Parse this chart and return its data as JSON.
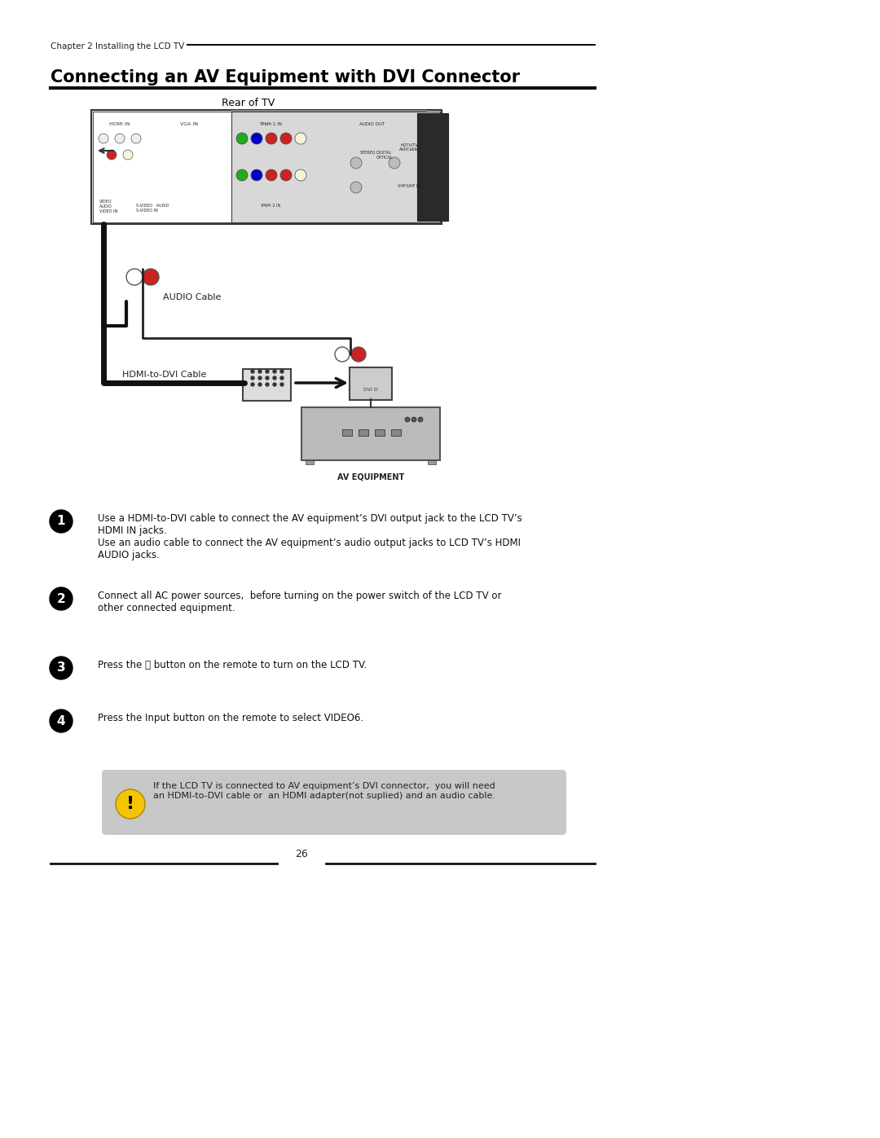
{
  "bg_color": "#ffffff",
  "page_width": 10.8,
  "page_height": 13.97,
  "chapter_text": "Chapter 2 Installing the LCD TV",
  "title": "Connecting an AV Equipment with DVI Connector",
  "rear_of_tv_label": "Rear of TV",
  "audio_cable_label": "AUDIO Cable",
  "hdmi_dvi_cable_label": "HDMI-to-DVI Cable",
  "av_equipment_label": "AV EQUIPMENT",
  "step1_text": "Use a HDMI-to-DVI cable to connect the AV equipment’s DVI output jack to the LCD TV’s\nHDMI IN jacks.\nUse an audio cable to connect the AV equipment’s audio output jacks to LCD TV’s HDMI\nAUDIO jacks.",
  "step2_text": "Connect all AC power sources,  before turning on the power switch of the LCD TV or\nother connected equipment.",
  "step3_text": "Press the ⏻ button on the remote to turn on the LCD TV.",
  "step4_text": "Press the Input button on the remote to select VIDEO6.",
  "note_text": "If the LCD TV is connected to AV equipment’s DVI connector,  you will need\nan HDMI-to-DVI cable or  an HDMI adapter(not suplied) and an audio cable.",
  "page_number": "26",
  "line_color": "#000000",
  "note_bg_color": "#c8c8c8",
  "warning_icon_outer": "#f5c400",
  "warning_icon_inner": "#000000",
  "step_circle_color": "#000000",
  "step_number_color": "#ffffff"
}
